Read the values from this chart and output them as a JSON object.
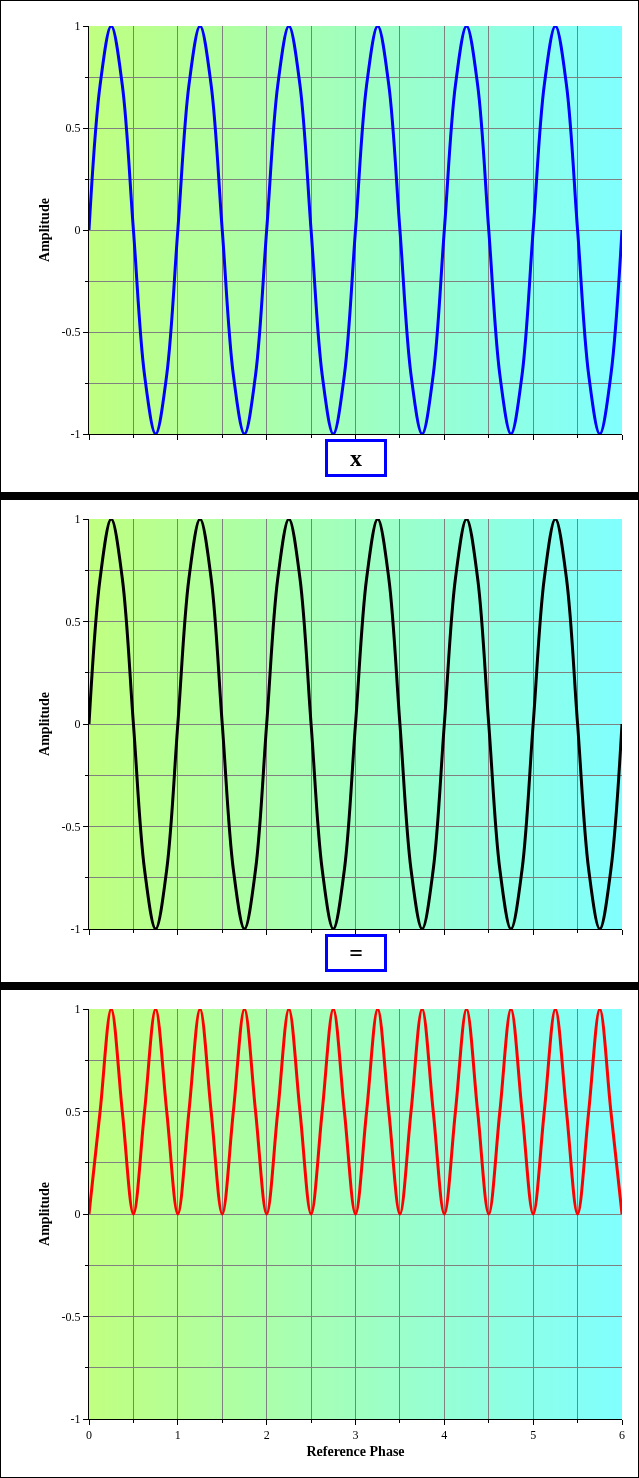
{
  "chart_data": [
    {
      "type": "line",
      "ylabel": "Amplitude",
      "x": [
        0,
        0.125,
        0.25,
        0.375,
        0.5,
        0.625,
        0.75,
        0.875,
        1,
        1.125,
        1.25,
        1.375,
        1.5,
        1.625,
        1.75,
        1.875,
        2,
        2.125,
        2.25,
        2.375,
        2.5,
        2.625,
        2.75,
        2.875,
        3,
        3.125,
        3.25,
        3.375,
        3.5,
        3.625,
        3.75,
        3.875,
        4,
        4.125,
        4.25,
        4.375,
        4.5,
        4.625,
        4.75,
        4.875,
        5,
        5.125,
        5.25,
        5.375,
        5.5,
        5.625,
        5.75,
        5.875,
        6
      ],
      "series": [
        {
          "color": "#0000ff",
          "values": [
            0,
            0.71,
            1,
            0.71,
            0,
            -0.71,
            -1,
            -0.71,
            0,
            0.71,
            1,
            0.71,
            0,
            -0.71,
            -1,
            -0.71,
            0,
            0.71,
            1,
            0.71,
            0,
            -0.71,
            -1,
            -0.71,
            0,
            0.71,
            1,
            0.71,
            0,
            -0.71,
            -1,
            -0.71,
            0,
            0.71,
            1,
            0.71,
            0,
            -0.71,
            -1,
            -0.71,
            0,
            0.71,
            1,
            0.71,
            0,
            -0.71,
            -1,
            -0.71,
            0
          ]
        }
      ],
      "xlim": [
        0,
        6
      ],
      "xticks": [
        0,
        1,
        2,
        3,
        4,
        5,
        6
      ],
      "ylim": [
        -1,
        1
      ],
      "yticks": [
        -1,
        -0.5,
        0,
        0.5,
        1
      ],
      "tick_labels": "y",
      "grid": true,
      "marker": "none",
      "line_style": "solid",
      "annotations": [
        "x"
      ]
    },
    {
      "type": "line",
      "ylabel": "Amplitude",
      "x": [
        0,
        0.125,
        0.25,
        0.375,
        0.5,
        0.625,
        0.75,
        0.875,
        1,
        1.125,
        1.25,
        1.375,
        1.5,
        1.625,
        1.75,
        1.875,
        2,
        2.125,
        2.25,
        2.375,
        2.5,
        2.625,
        2.75,
        2.875,
        3,
        3.125,
        3.25,
        3.375,
        3.5,
        3.625,
        3.75,
        3.875,
        4,
        4.125,
        4.25,
        4.375,
        4.5,
        4.625,
        4.75,
        4.875,
        5,
        5.125,
        5.25,
        5.375,
        5.5,
        5.625,
        5.75,
        5.875,
        6
      ],
      "series": [
        {
          "color": "#000000",
          "values": [
            0,
            0.71,
            1,
            0.71,
            0,
            -0.71,
            -1,
            -0.71,
            0,
            0.71,
            1,
            0.71,
            0,
            -0.71,
            -1,
            -0.71,
            0,
            0.71,
            1,
            0.71,
            0,
            -0.71,
            -1,
            -0.71,
            0,
            0.71,
            1,
            0.71,
            0,
            -0.71,
            -1,
            -0.71,
            0,
            0.71,
            1,
            0.71,
            0,
            -0.71,
            -1,
            -0.71,
            0,
            0.71,
            1,
            0.71,
            0,
            -0.71,
            -1,
            -0.71,
            0
          ]
        }
      ],
      "xlim": [
        0,
        6
      ],
      "xticks": [
        0,
        1,
        2,
        3,
        4,
        5,
        6
      ],
      "ylim": [
        -1,
        1
      ],
      "yticks": [
        -1,
        -0.5,
        0,
        0.5,
        1
      ],
      "tick_labels": "y",
      "grid": true,
      "marker": "none",
      "line_style": "solid",
      "annotations": [
        "="
      ]
    },
    {
      "type": "line",
      "xlabel": "Reference Phase",
      "ylabel": "Amplitude",
      "x": [
        0,
        0.125,
        0.25,
        0.375,
        0.5,
        0.625,
        0.75,
        0.875,
        1,
        1.125,
        1.25,
        1.375,
        1.5,
        1.625,
        1.75,
        1.875,
        2,
        2.125,
        2.25,
        2.375,
        2.5,
        2.625,
        2.75,
        2.875,
        3,
        3.125,
        3.25,
        3.375,
        3.5,
        3.625,
        3.75,
        3.875,
        4,
        4.125,
        4.25,
        4.375,
        4.5,
        4.625,
        4.75,
        4.875,
        5,
        5.125,
        5.25,
        5.375,
        5.5,
        5.625,
        5.75,
        5.875,
        6
      ],
      "series": [
        {
          "color": "#ff0000",
          "values": [
            0,
            0.5,
            1,
            0.5,
            0,
            0.5,
            1,
            0.5,
            0,
            0.5,
            1,
            0.5,
            0,
            0.5,
            1,
            0.5,
            0,
            0.5,
            1,
            0.5,
            0,
            0.5,
            1,
            0.5,
            0,
            0.5,
            1,
            0.5,
            0,
            0.5,
            1,
            0.5,
            0,
            0.5,
            1,
            0.5,
            0,
            0.5,
            1,
            0.5,
            0,
            0.5,
            1,
            0.5,
            0,
            0.5,
            1,
            0.5,
            0
          ]
        }
      ],
      "xlim": [
        0,
        6
      ],
      "xticks": [
        0,
        1,
        2,
        3,
        4,
        5,
        6
      ],
      "ylim": [
        -1,
        1
      ],
      "yticks": [
        -1,
        -0.5,
        0,
        0.5,
        1
      ],
      "grid": true,
      "marker": "none",
      "line_style": "solid"
    }
  ]
}
